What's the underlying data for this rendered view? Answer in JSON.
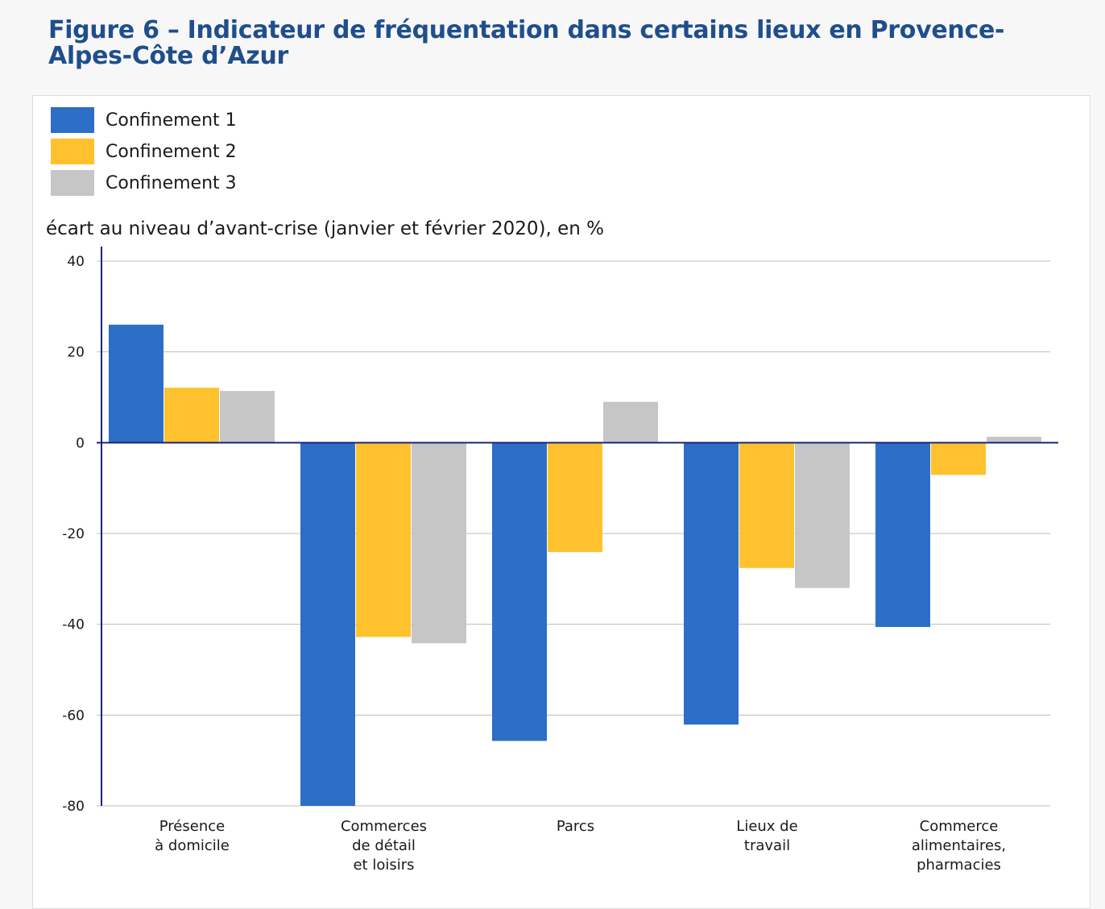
{
  "title": "Figure 6 – Indicateur de fréquentation dans certains lieux en Provence-Alpes-Côte d’Azur",
  "chart_data": {
    "type": "bar",
    "unit_label": "écart au niveau d’avant-crise (janvier et février 2020), en %",
    "categories": [
      [
        "Présence",
        "à domicile"
      ],
      [
        "Commerces",
        "de détail",
        "et loisirs"
      ],
      [
        "Parcs"
      ],
      [
        "Lieux de",
        "travail"
      ],
      [
        "Commerce",
        "alimentaires,",
        "pharmacies"
      ]
    ],
    "series": [
      {
        "name": "Confinement 1",
        "color": "#2d6ec7",
        "values": [
          26,
          -80,
          -65.7,
          -62.1,
          -40.6
        ]
      },
      {
        "name": "Confinement 2",
        "color": "#ffc22e",
        "values": [
          12.1,
          -42.8,
          -24.1,
          -27.6,
          -7.1
        ]
      },
      {
        "name": "Confinement 3",
        "color": "#c6c6c6",
        "values": [
          11.4,
          -44.2,
          9,
          -32,
          1.3
        ]
      }
    ],
    "y_ticks": [
      40,
      20,
      0,
      -20,
      -40,
      -60,
      -80
    ],
    "ylim": [
      -80,
      40
    ],
    "grid": true,
    "legend_position": "top-left"
  }
}
